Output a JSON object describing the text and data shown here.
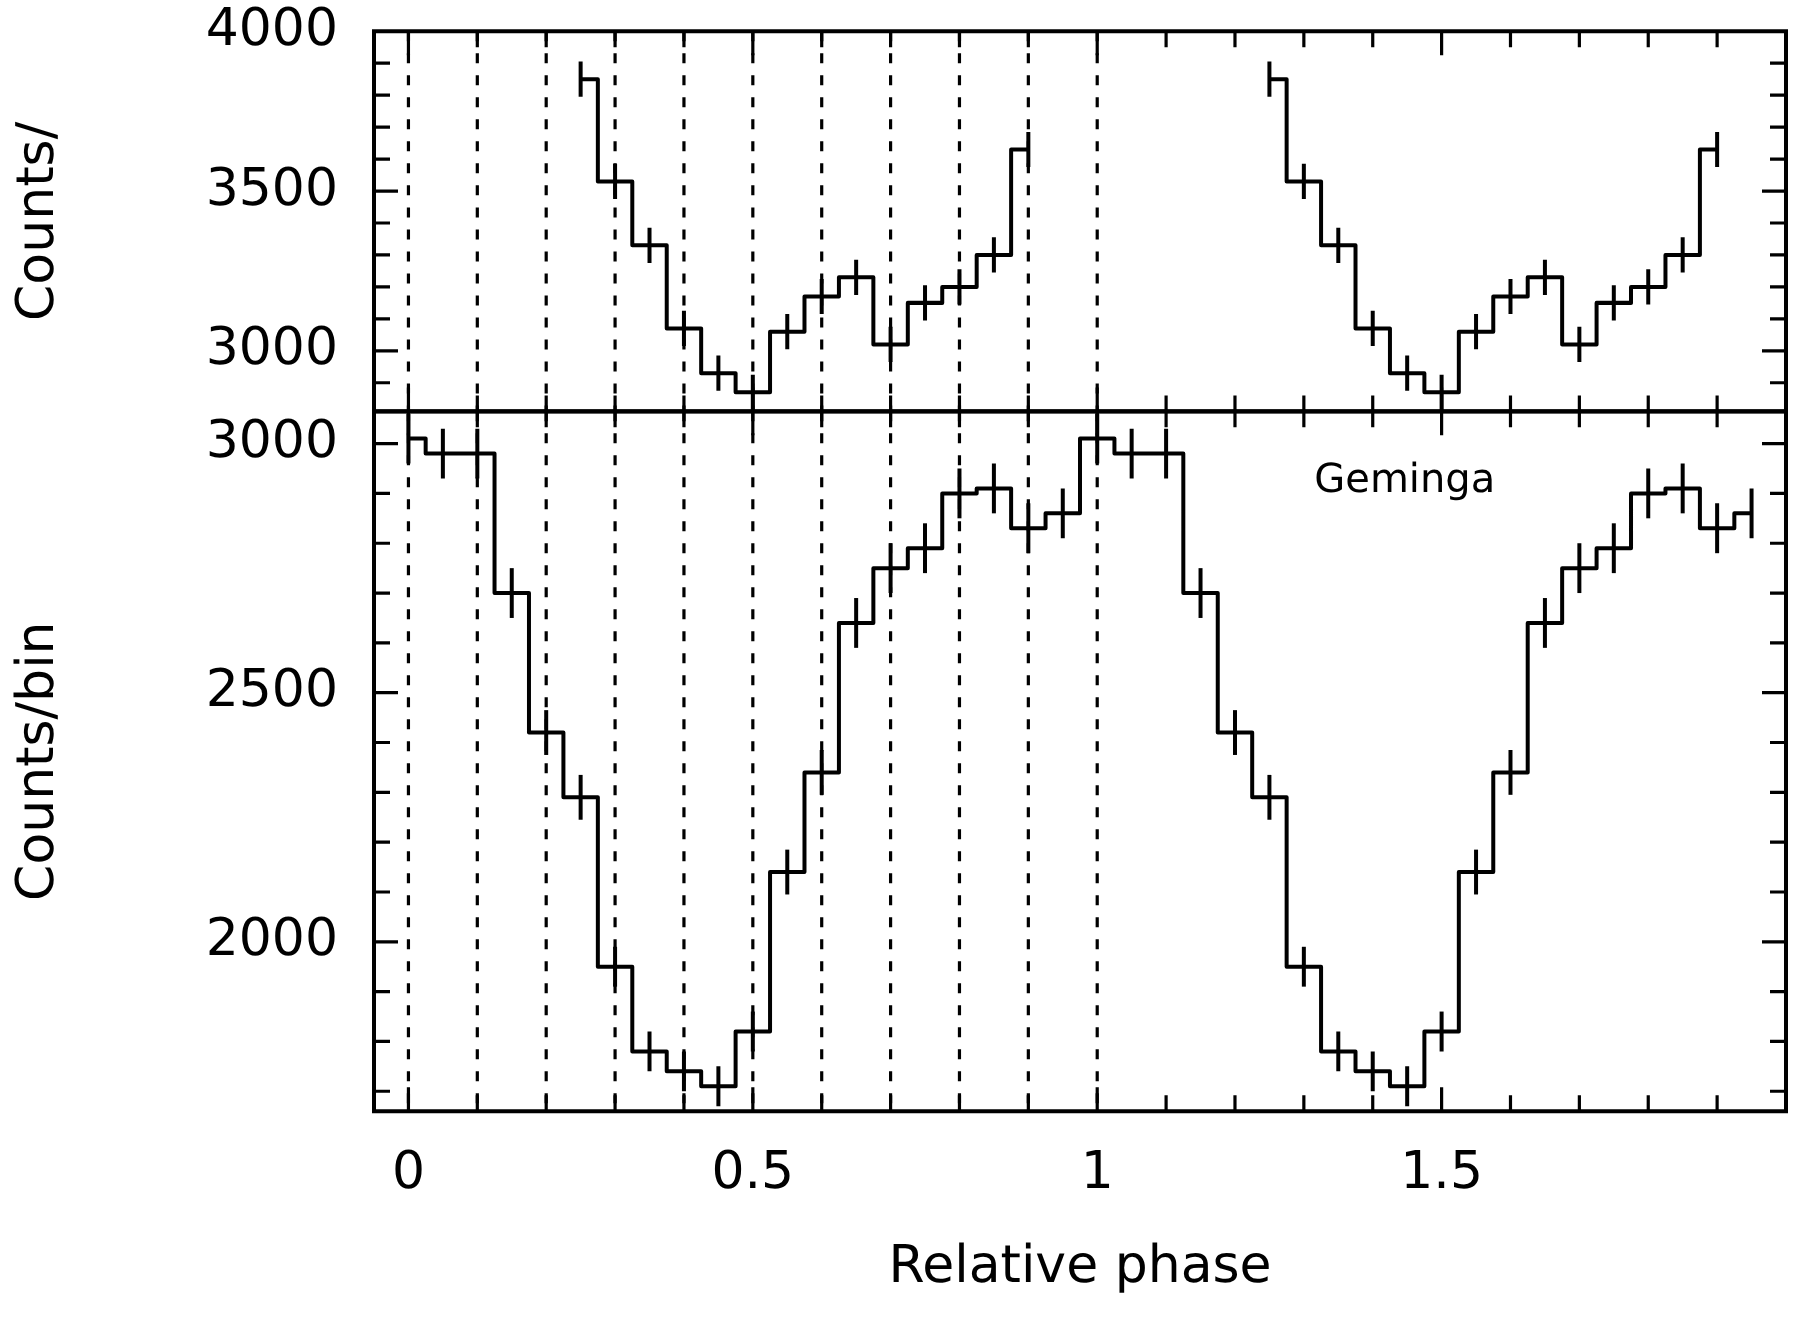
{
  "chart_data": [
    {
      "type": "step",
      "ylabel": "Counts/",
      "series": [
        {
          "color": "#000000",
          "x": [
            0.25,
            0.3,
            0.35,
            0.4,
            0.45,
            0.5,
            0.55,
            0.6,
            0.65,
            0.7,
            0.75,
            0.8,
            0.85,
            0.9
          ],
          "values": [
            3850,
            3530,
            3330,
            3070,
            2930,
            2870,
            3060,
            3170,
            3230,
            3020,
            3150,
            3200,
            3300,
            3630
          ],
          "errors": [
            55,
            55,
            55,
            55,
            55,
            55,
            55,
            55,
            55,
            55,
            55,
            55,
            55,
            55
          ]
        },
        {
          "color": "#000000",
          "x": [
            1.25,
            1.3,
            1.35,
            1.4,
            1.45,
            1.5,
            1.55,
            1.6,
            1.65,
            1.7,
            1.75,
            1.8,
            1.85,
            1.9
          ],
          "values": [
            3850,
            3530,
            3330,
            3070,
            2930,
            2870,
            3060,
            3170,
            3230,
            3020,
            3150,
            3200,
            3300,
            3630
          ],
          "errors": [
            55,
            55,
            55,
            55,
            55,
            55,
            55,
            55,
            55,
            55,
            55,
            55,
            55,
            55
          ]
        }
      ],
      "xlim": [
        -0.05,
        2.0
      ],
      "xticks": [
        0,
        {
          "value": 0.1,
          "label": null
        },
        {
          "value": 0.2,
          "label": null
        },
        {
          "value": 0.3,
          "label": null
        },
        {
          "value": 0.4,
          "label": null
        },
        0.5,
        {
          "value": 0.6,
          "label": null
        },
        {
          "value": 0.7,
          "label": null
        },
        {
          "value": 0.8,
          "label": null
        },
        {
          "value": 0.9,
          "label": null
        },
        1,
        {
          "value": 1.1,
          "label": null
        },
        {
          "value": 1.2,
          "label": null
        },
        {
          "value": 1.3,
          "label": null
        },
        {
          "value": 1.4,
          "label": null
        },
        1.5,
        {
          "value": 1.6,
          "label": null
        },
        {
          "value": 1.7,
          "label": null
        },
        {
          "value": 1.8,
          "label": null
        },
        {
          "value": 1.9,
          "label": null
        }
      ],
      "ylim": [
        2810,
        4000
      ],
      "yticks": [
        {
          "value": 2900,
          "label": null
        },
        3000,
        {
          "value": 3100,
          "label": null
        },
        {
          "value": 3200,
          "label": null
        },
        {
          "value": 3300,
          "label": null
        },
        {
          "value": 3400,
          "label": null
        },
        3500,
        {
          "value": 3600,
          "label": null
        },
        {
          "value": 3700,
          "label": null
        },
        {
          "value": 3800,
          "label": null
        },
        {
          "value": 3900,
          "label": null
        },
        4000
      ],
      "tick_labels": "y",
      "ref_lines": [
        {
          "axis": "x",
          "value": 0,
          "line_style": "dashed"
        },
        {
          "axis": "x",
          "value": 0.1,
          "line_style": "dashed"
        },
        {
          "axis": "x",
          "value": 0.2,
          "line_style": "dashed"
        },
        {
          "axis": "x",
          "value": 0.3,
          "line_style": "dashed"
        },
        {
          "axis": "x",
          "value": 0.4,
          "line_style": "dashed"
        },
        {
          "axis": "x",
          "value": 0.5,
          "line_style": "dashed"
        },
        {
          "axis": "x",
          "value": 0.6,
          "line_style": "dashed"
        },
        {
          "axis": "x",
          "value": 0.7,
          "line_style": "dashed"
        },
        {
          "axis": "x",
          "value": 0.8,
          "line_style": "dashed"
        },
        {
          "axis": "x",
          "value": 0.9,
          "line_style": "dashed"
        },
        {
          "axis": "x",
          "value": 1.0,
          "line_style": "dashed"
        }
      ]
    },
    {
      "type": "step",
      "ylabel": "Counts/bin",
      "xlabel": "Relative phase",
      "annotations": [
        "Geminga"
      ],
      "x": [
        0,
        0.05,
        0.1,
        0.15,
        0.2,
        0.25,
        0.3,
        0.35,
        0.4,
        0.45,
        0.5,
        0.55,
        0.6,
        0.65,
        0.7,
        0.75,
        0.8,
        0.85,
        0.9,
        0.95,
        1.0,
        1.05,
        1.1,
        1.15,
        1.2,
        1.25,
        1.3,
        1.35,
        1.4,
        1.45,
        1.5,
        1.55,
        1.6,
        1.65,
        1.7,
        1.75,
        1.8,
        1.85,
        1.9,
        1.95
      ],
      "values": [
        3010,
        2980,
        2980,
        2700,
        2420,
        2290,
        1950,
        1780,
        1740,
        1710,
        1820,
        2140,
        2340,
        2640,
        2750,
        2790,
        2900,
        2910,
        2830,
        2860,
        3010,
        2980,
        2980,
        2700,
        2420,
        2290,
        1950,
        1780,
        1740,
        1710,
        1820,
        2140,
        2340,
        2640,
        2750,
        2790,
        2900,
        2910,
        2830,
        2860
      ],
      "errors": [
        50,
        50,
        50,
        50,
        45,
        45,
        40,
        40,
        40,
        40,
        40,
        45,
        45,
        50,
        50,
        50,
        50,
        50,
        50,
        50,
        50,
        50,
        50,
        50,
        45,
        45,
        40,
        40,
        40,
        40,
        40,
        45,
        45,
        50,
        50,
        50,
        50,
        50,
        50,
        50
      ],
      "color": "#000000",
      "xlim": [
        -0.05,
        2.0
      ],
      "xticks": [
        0,
        {
          "value": 0.1,
          "label": null
        },
        {
          "value": 0.2,
          "label": null
        },
        {
          "value": 0.3,
          "label": null
        },
        {
          "value": 0.4,
          "label": null
        },
        0.5,
        {
          "value": 0.6,
          "label": null
        },
        {
          "value": 0.7,
          "label": null
        },
        {
          "value": 0.8,
          "label": null
        },
        {
          "value": 0.9,
          "label": null
        },
        1,
        {
          "value": 1.1,
          "label": null
        },
        {
          "value": 1.2,
          "label": null
        },
        {
          "value": 1.3,
          "label": null
        },
        {
          "value": 1.4,
          "label": null
        },
        1.5,
        {
          "value": 1.6,
          "label": null
        },
        {
          "value": 1.7,
          "label": null
        },
        {
          "value": 1.8,
          "label": null
        },
        {
          "value": 1.9,
          "label": null
        }
      ],
      "ylim": [
        1660,
        3065
      ],
      "yticks": [
        {
          "value": 1700,
          "label": null
        },
        {
          "value": 1800,
          "label": null
        },
        {
          "value": 1900,
          "label": null
        },
        2000,
        {
          "value": 2100,
          "label": null
        },
        {
          "value": 2200,
          "label": null
        },
        {
          "value": 2300,
          "label": null
        },
        {
          "value": 2400,
          "label": null
        },
        2500,
        {
          "value": 2600,
          "label": null
        },
        {
          "value": 2700,
          "label": null
        },
        {
          "value": 2800,
          "label": null
        },
        {
          "value": 2900,
          "label": null
        },
        3000
      ],
      "ref_lines": [
        {
          "axis": "x",
          "value": 0,
          "line_style": "dashed"
        },
        {
          "axis": "x",
          "value": 0.1,
          "line_style": "dashed"
        },
        {
          "axis": "x",
          "value": 0.2,
          "line_style": "dashed"
        },
        {
          "axis": "x",
          "value": 0.3,
          "line_style": "dashed"
        },
        {
          "axis": "x",
          "value": 0.4,
          "line_style": "dashed"
        },
        {
          "axis": "x",
          "value": 0.5,
          "line_style": "dashed"
        },
        {
          "axis": "x",
          "value": 0.6,
          "line_style": "dashed"
        },
        {
          "axis": "x",
          "value": 0.7,
          "line_style": "dashed"
        },
        {
          "axis": "x",
          "value": 0.8,
          "line_style": "dashed"
        },
        {
          "axis": "x",
          "value": 0.9,
          "line_style": "dashed"
        },
        {
          "axis": "x",
          "value": 1.0,
          "line_style": "dashed"
        }
      ]
    }
  ]
}
